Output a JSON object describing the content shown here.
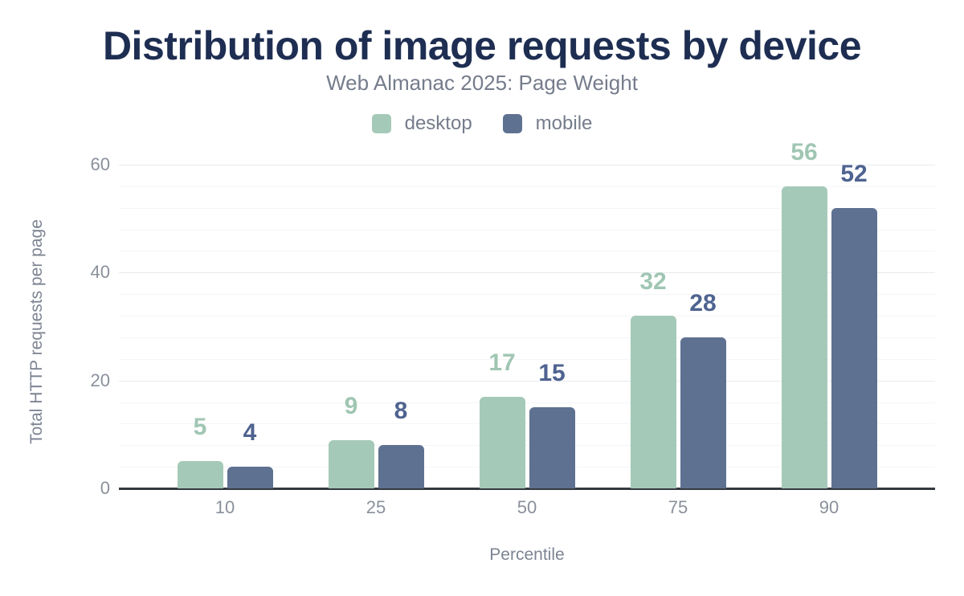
{
  "header": {
    "title": "Distribution of image requests by device",
    "subtitle": "Web Almanac 2025: Page Weight"
  },
  "legend": [
    {
      "label": "desktop",
      "color": "#a5c9b8"
    },
    {
      "label": "mobile",
      "color": "#5f7191"
    }
  ],
  "colors": {
    "title": "#1e2e52",
    "subtitle": "#757c8b",
    "legend_label": "#757c8b",
    "tick_label": "#8a909b",
    "axis_title": "#7d8492",
    "axis_line": "#35393f",
    "grid_major": "#e8eaed",
    "grid_minor": "#f4f5f7",
    "background": "#ffffff"
  },
  "chart_data": {
    "type": "bar",
    "title": "Distribution of image requests by device",
    "subtitle": "Web Almanac 2025: Page Weight",
    "xlabel": "Percentile",
    "ylabel": "Total HTTP requests per page",
    "categories": [
      "10",
      "25",
      "50",
      "75",
      "90"
    ],
    "series": [
      {
        "name": "desktop",
        "color": "#a5c9b8",
        "label_color": "#a0c6b3",
        "values": [
          5,
          9,
          17,
          32,
          56
        ]
      },
      {
        "name": "mobile",
        "color": "#5f7191",
        "label_color": "#4f6390",
        "values": [
          4,
          8,
          15,
          28,
          52
        ]
      }
    ],
    "value_labels": true,
    "ylim": [
      0,
      60
    ],
    "y_ticks": [
      0,
      20,
      40,
      60
    ],
    "minor_grid_step": 4,
    "grid": "horizontal",
    "legend_position": "top"
  }
}
